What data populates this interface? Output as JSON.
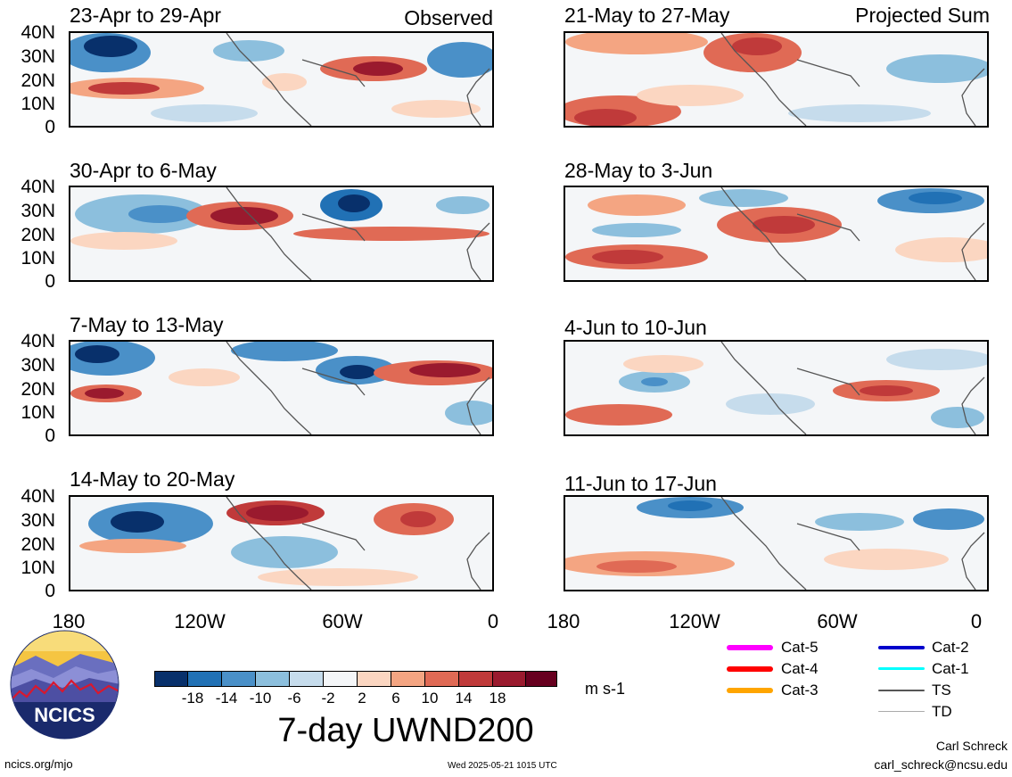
{
  "panels": [
    {
      "title": "23-Apr to 29-Apr",
      "corner": "Observed"
    },
    {
      "title": "30-Apr to 6-May",
      "corner": ""
    },
    {
      "title": "7-May to 13-May",
      "corner": ""
    },
    {
      "title": "14-May to 20-May",
      "corner": ""
    },
    {
      "title": "21-May to 27-May",
      "corner": "Projected Sum"
    },
    {
      "title": "28-May to 3-Jun",
      "corner": ""
    },
    {
      "title": "4-Jun to 10-Jun",
      "corner": ""
    },
    {
      "title": "11-Jun to 17-Jun",
      "corner": ""
    }
  ],
  "lat_labels": [
    "40N",
    "30N",
    "20N",
    "10N",
    "0"
  ],
  "lon_labels": [
    "180",
    "120W",
    "60W",
    "0"
  ],
  "colorbar": {
    "colors": [
      "#08306b",
      "#2171b5",
      "#4a90c8",
      "#8cbfdd",
      "#c6dcec",
      "#f4f6f8",
      "#fbd6c1",
      "#f4a582",
      "#e06a55",
      "#c03a3a",
      "#9a1a2e",
      "#67001f"
    ],
    "ticks": [
      "-18",
      "-14",
      "-10",
      "-6",
      "-2",
      "2",
      "6",
      "10",
      "14",
      "18"
    ],
    "units": "m s-1",
    "title": "7-day UWND200"
  },
  "legend": [
    {
      "label": "Cat-5",
      "color": "#ff00ff"
    },
    {
      "label": "Cat-4",
      "color": "#ff0000"
    },
    {
      "label": "Cat-3",
      "color": "#ffa500"
    },
    {
      "label": "Cat-2",
      "color": "#0000cc"
    },
    {
      "label": "Cat-1",
      "color": "#00ffff"
    },
    {
      "label": "TS",
      "color": "#555555"
    },
    {
      "label": "TD",
      "color": "#aaaaaa"
    }
  ],
  "logo": {
    "text": "NCICS"
  },
  "footer": {
    "site": "ncics.org/mjo",
    "timestamp": "Wed 2025-05-21 1015 UTC",
    "author": "Carl Schreck",
    "email": "carl_schreck@ncsu.edu"
  }
}
